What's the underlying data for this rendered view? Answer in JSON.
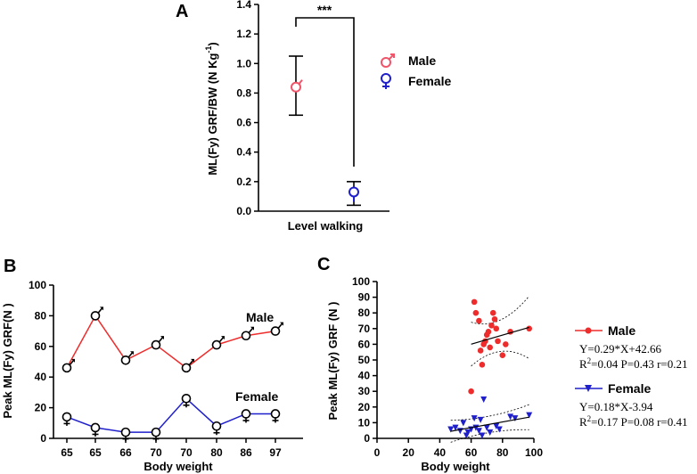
{
  "figure": {
    "panel_a_label": "A",
    "panel_b_label": "B",
    "panel_c_label": "C"
  },
  "colors": {
    "male": "#ee2c2c",
    "female": "#1f1fcc",
    "male_symbol": "#f0556a",
    "axis": "#000000"
  },
  "chart_data": [
    {
      "panel": "A",
      "type": "scatter",
      "title": "",
      "xlabel": "Level walking",
      "ylabel": "ML(Fy) GRF/BW (N Kg-1)",
      "ylabel_main": "ML(Fy) GRF/BW (N Kg",
      "ylabel_sup": "-1",
      "ylabel_tail": ")",
      "ylim": [
        0,
        1.4
      ],
      "yticks": [
        "0.0",
        "0.2",
        "0.4",
        "0.6",
        "0.8",
        "1.0",
        "1.2",
        "1.4"
      ],
      "significance": "***",
      "legend": [
        "Male",
        "Female"
      ],
      "series": [
        {
          "name": "Male",
          "mean": 0.84,
          "lower": 0.65,
          "upper": 1.05
        },
        {
          "name": "Female",
          "mean": 0.13,
          "lower": 0.04,
          "upper": 0.2
        }
      ]
    },
    {
      "panel": "B",
      "type": "line",
      "title": "",
      "xlabel": "Body weight",
      "ylabel": "Peak ML(Fy) GRF(N )",
      "ylim": [
        0,
        100
      ],
      "yticks": [
        "0",
        "20",
        "40",
        "60",
        "80",
        "100"
      ],
      "categories": [
        "65",
        "65",
        "66",
        "70",
        "70",
        "80",
        "86",
        "97"
      ],
      "series": [
        {
          "name": "Male",
          "values": [
            46,
            80,
            51,
            61,
            46,
            61,
            67,
            70
          ]
        },
        {
          "name": "Female",
          "values": [
            14,
            7,
            4,
            4,
            26,
            8,
            16,
            16
          ]
        }
      ]
    },
    {
      "panel": "C",
      "type": "scatter",
      "title": "",
      "xlabel": "Body weight",
      "ylabel": "Peak ML(Fy) GRF (N )",
      "xlim": [
        0,
        100
      ],
      "ylim": [
        0,
        100
      ],
      "xticks": [
        "0",
        "20",
        "40",
        "60",
        "80",
        "100"
      ],
      "yticks": [
        "0",
        "10",
        "20",
        "30",
        "40",
        "50",
        "60",
        "70",
        "80",
        "90",
        "100"
      ],
      "legend": [
        "Male",
        "Female"
      ],
      "series": [
        {
          "name": "Male",
          "x": [
            62,
            63,
            65,
            66,
            67,
            68,
            69,
            70,
            71,
            72,
            73,
            74,
            75,
            76,
            77,
            80,
            82,
            85,
            97,
            60
          ],
          "y": [
            87,
            80,
            75,
            56,
            47,
            60,
            62,
            66,
            68,
            58,
            72,
            80,
            76,
            70,
            62,
            53,
            60,
            68,
            70,
            30
          ],
          "fit": {
            "slope": 0.29,
            "intercept": 42.66,
            "x_range": [
              60,
              97
            ]
          },
          "equation": "Y=0.29*X+42.66",
          "r2_prefix": "R",
          "r2_sup": "2",
          "stats": "=0.04  P=0.43 r=0.21"
        },
        {
          "name": "Female",
          "x": [
            47,
            50,
            53,
            55,
            57,
            58,
            60,
            62,
            63,
            65,
            66,
            67,
            68,
            70,
            72,
            76,
            78,
            85,
            88,
            97
          ],
          "y": [
            6,
            7,
            5,
            10,
            2,
            4,
            6,
            13,
            7,
            5,
            12,
            2,
            25,
            7,
            4,
            8,
            6,
            14,
            13,
            15
          ],
          "fit": {
            "slope": 0.18,
            "intercept": -3.94,
            "x_range": [
              47,
              97
            ]
          },
          "equation": "Y=0.18*X-3.94",
          "r2_prefix": "R",
          "r2_sup": "2",
          "stats": "=0.17  P=0.08 r=0.41"
        }
      ]
    }
  ]
}
